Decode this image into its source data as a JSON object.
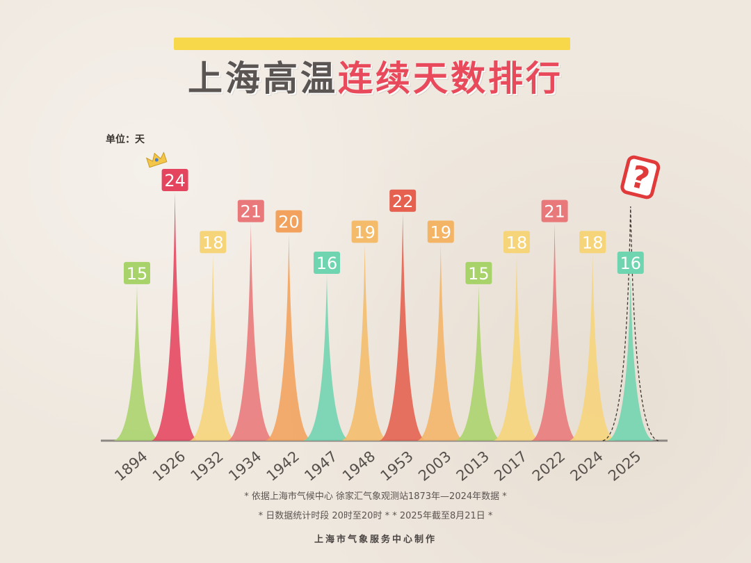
{
  "title": {
    "part1": "上海高温",
    "part2": "连续天数排行"
  },
  "unit_label": "单位：天",
  "footnotes": [
    "* 依据上海市气候中心 徐家汇气象观测站1873年—2024年数据 *",
    "* 日数据统计时段 20时至20时 *  * 2025年截至8月21日 *"
  ],
  "credit": "上海市气象服务中心制作",
  "highlight_mark": "?",
  "chart_data": {
    "type": "area",
    "categories": [
      "1894",
      "1926",
      "1932",
      "1934",
      "1942",
      "1947",
      "1948",
      "1953",
      "2003",
      "2013",
      "2017",
      "2022",
      "2024",
      "2025"
    ],
    "values": [
      15,
      24,
      18,
      21,
      20,
      16,
      19,
      22,
      19,
      15,
      18,
      21,
      18,
      16
    ],
    "data_labels": [
      "15",
      "24",
      "18",
      "21",
      "20",
      "16",
      "19",
      "22",
      "19",
      "15",
      "18",
      "21",
      "18",
      "16"
    ],
    "ylabel": "单位：天",
    "ylim": [
      0,
      24
    ],
    "colors": [
      "#a8d36a",
      "#e5445e",
      "#f6d47a",
      "#e9787a",
      "#f2a25c",
      "#6fd4b0",
      "#f4bc6a",
      "#e5604e",
      "#f3b466",
      "#a8d36a",
      "#f6d47a",
      "#e9787a",
      "#f6d47a",
      "#6fd4b0"
    ],
    "crown_on": "1926",
    "projected_on": "2025",
    "grid": false,
    "legend": "none"
  }
}
